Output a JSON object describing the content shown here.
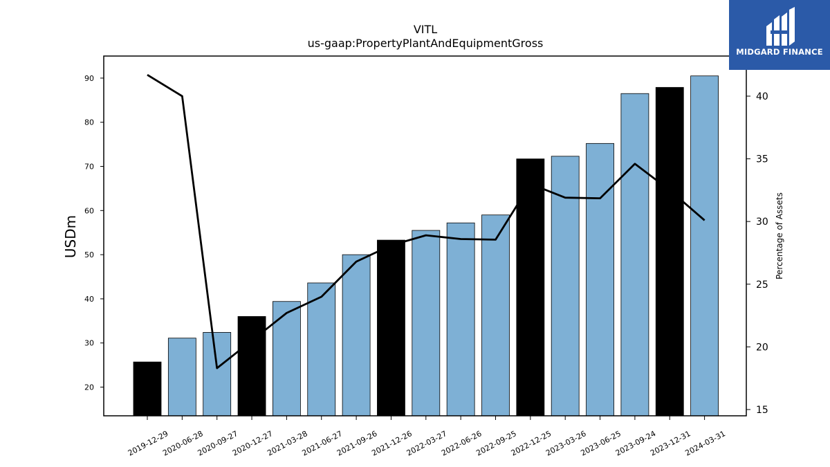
{
  "chart_data": {
    "type": "bar",
    "title": "VITL",
    "subtitle": "us-gaap:PropertyPlantAndEquipmentGross",
    "ylabel": "USDm",
    "y2label": "Percentage of Assets",
    "ylim": [
      13.5,
      95
    ],
    "y2lim": [
      14.5,
      43.2
    ],
    "yticks": [
      20,
      30,
      40,
      50,
      60,
      70,
      80,
      90
    ],
    "y2ticks": [
      15,
      20,
      25,
      30,
      35,
      40
    ],
    "categories": [
      "2019-12-29",
      "2020-06-28",
      "2020-09-27",
      "2020-12-27",
      "2021-03-28",
      "2021-06-27",
      "2021-09-26",
      "2021-12-26",
      "2022-03-27",
      "2022-06-26",
      "2022-09-25",
      "2022-12-25",
      "2023-03-26",
      "2023-06-25",
      "2023-09-24",
      "2023-12-31",
      "2024-03-31"
    ],
    "series": [
      {
        "values": [
          25.7,
          31.1,
          32.4,
          36.0,
          39.4,
          43.6,
          50.0,
          53.3,
          55.5,
          57.2,
          59.0,
          71.7,
          72.3,
          75.2,
          86.5,
          87.9,
          90.5
        ],
        "axis": "left"
      },
      {
        "values": [
          41.7,
          40.0,
          18.3,
          20.5,
          22.7,
          24.0,
          26.8,
          28.1,
          28.9,
          28.6,
          28.55,
          33.0,
          31.9,
          31.85,
          34.6,
          32.5,
          30.1
        ],
        "axis": "right"
      }
    ],
    "bar_colors": [
      "#000000",
      "#7eb0d5",
      "#7eb0d5",
      "#000000",
      "#7eb0d5",
      "#7eb0d5",
      "#7eb0d5",
      "#000000",
      "#7eb0d5",
      "#7eb0d5",
      "#7eb0d5",
      "#000000",
      "#7eb0d5",
      "#7eb0d5",
      "#7eb0d5",
      "#000000",
      "#7eb0d5"
    ],
    "line_color": "#000000",
    "grid": false
  },
  "logo": {
    "text": "MIDGARD FINANCE"
  }
}
